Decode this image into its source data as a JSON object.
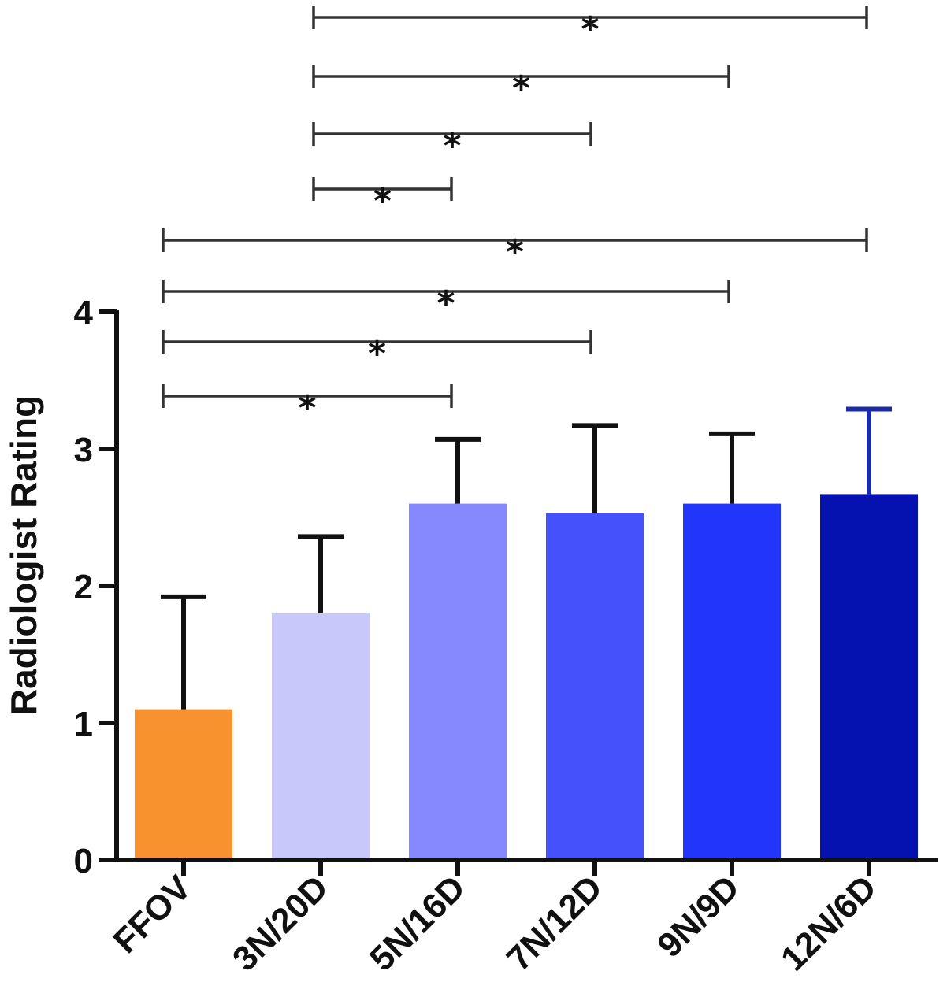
{
  "chart_data": {
    "type": "bar",
    "title": "",
    "xlabel": "",
    "ylabel": "Radiologist Rating",
    "ylim": [
      0,
      4
    ],
    "yticks": [
      "0",
      "1",
      "2",
      "3",
      "4"
    ],
    "grid": false,
    "categories": [
      "FFOV",
      "3N/20D",
      "5N/16D",
      "7N/12D",
      "9N/9D",
      "12N/6D"
    ],
    "values": [
      1.1,
      1.8,
      2.6,
      2.53,
      2.6,
      2.67
    ],
    "errors_upper": [
      0.82,
      0.56,
      0.47,
      0.64,
      0.51,
      0.62
    ],
    "colors": [
      "#f7922e",
      "#c8c8fa",
      "#8589fc",
      "#4551fb",
      "#2136fa",
      "#0512b0"
    ],
    "error_colors": [
      "#111111",
      "#111111",
      "#111111",
      "#111111",
      "#111111",
      "#1a2aa8"
    ],
    "significance": [
      {
        "from": "3N/20D",
        "to": "12N/6D",
        "label": "*"
      },
      {
        "from": "3N/20D",
        "to": "9N/9D",
        "label": "*"
      },
      {
        "from": "3N/20D",
        "to": "7N/12D",
        "label": "*"
      },
      {
        "from": "3N/20D",
        "to": "5N/16D",
        "label": "*"
      },
      {
        "from": "FFOV",
        "to": "12N/6D",
        "label": "*"
      },
      {
        "from": "FFOV",
        "to": "9N/9D",
        "label": "*"
      },
      {
        "from": "FFOV",
        "to": "7N/12D",
        "label": "*"
      },
      {
        "from": "FFOV",
        "to": "5N/16D",
        "label": "*"
      }
    ]
  }
}
